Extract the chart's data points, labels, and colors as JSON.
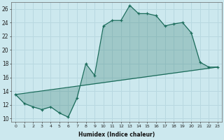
{
  "xlabel": "Humidex (Indice chaleur)",
  "ylabel": "",
  "bg_color": "#cce8ee",
  "grid_color": "#b8d8e0",
  "line_color": "#1a6b5a",
  "fill_color": "#1a6b5a",
  "xlim": [
    -0.5,
    23.5
  ],
  "ylim": [
    9.5,
    27.0
  ],
  "xticks": [
    0,
    1,
    2,
    3,
    4,
    5,
    6,
    7,
    8,
    9,
    10,
    11,
    12,
    13,
    14,
    15,
    16,
    17,
    18,
    19,
    20,
    21,
    22,
    23
  ],
  "yticks": [
    10,
    12,
    14,
    16,
    18,
    20,
    22,
    24,
    26
  ],
  "series1_x": [
    0,
    1,
    2,
    3,
    4,
    5,
    6,
    7,
    8,
    9,
    10,
    11,
    12,
    13,
    14,
    15,
    16,
    17,
    18,
    19,
    20,
    21,
    22,
    23
  ],
  "series1_y": [
    13.5,
    12.2,
    11.7,
    11.3,
    11.7,
    10.8,
    10.2,
    13.0,
    18.0,
    16.3,
    23.5,
    24.3,
    24.3,
    26.5,
    25.3,
    25.3,
    25.0,
    23.5,
    23.8,
    24.0,
    22.5,
    18.2,
    17.5,
    17.5
  ],
  "series2_x": [
    0,
    23
  ],
  "series2_y": [
    13.5,
    17.5
  ]
}
